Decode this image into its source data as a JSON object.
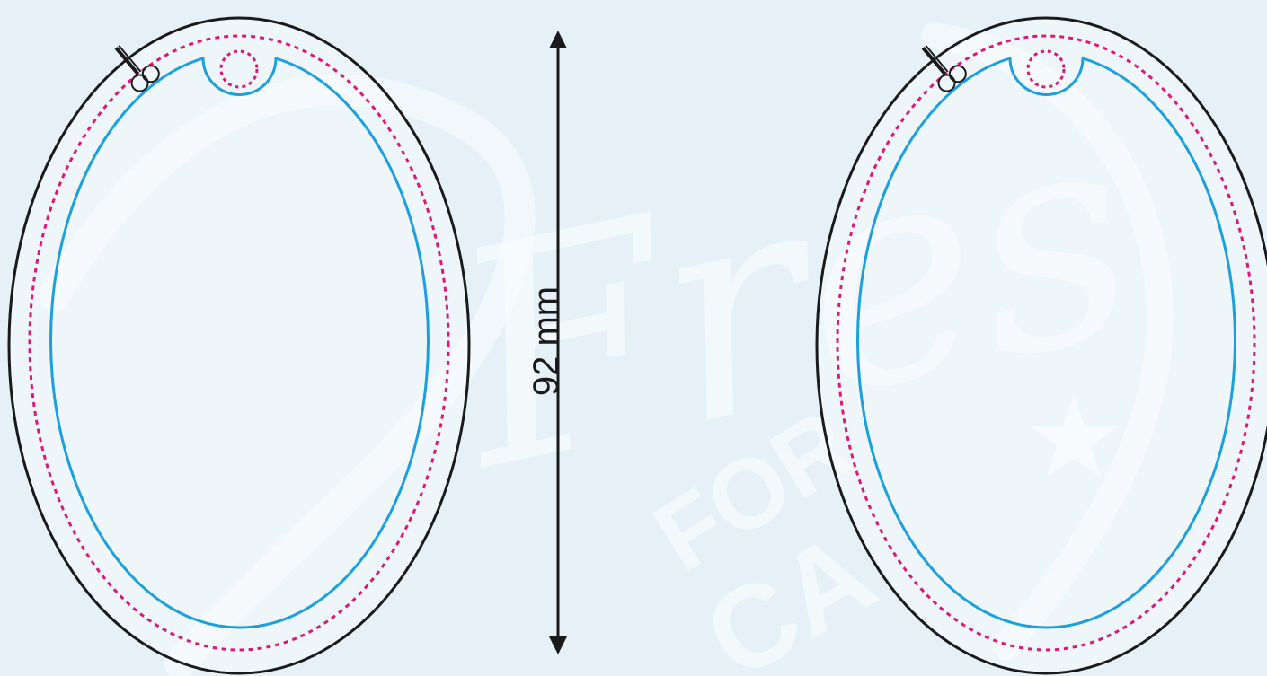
{
  "background": {
    "color": "#e6f1f7",
    "watermark_words": [
      "Fres",
      "FOR",
      "CA"
    ]
  },
  "dimension": {
    "label": "92 mm"
  },
  "colors": {
    "cut_line": "#1a1a1a",
    "bleed_line": "#e0157a",
    "safe_line": "#1aa0dc",
    "arrow": "#1a1a1a"
  },
  "templates": [
    {
      "name": "left-oval-template",
      "icon": "scissors-icon"
    },
    {
      "name": "right-oval-template",
      "icon": "scissors-icon"
    }
  ]
}
